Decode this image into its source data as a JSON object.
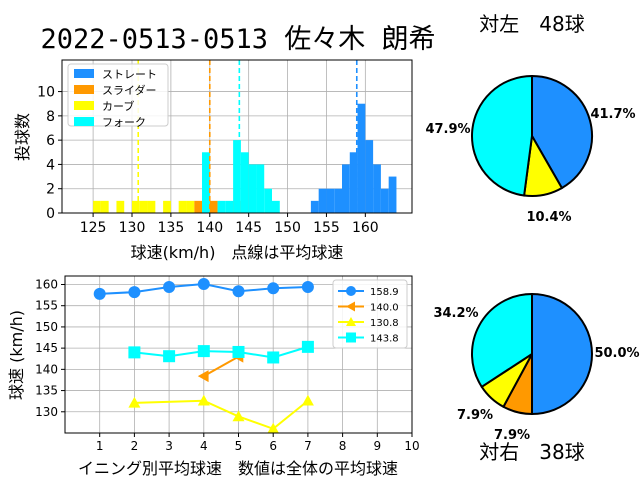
{
  "title": "2022-0513-0513 佐々木 朗希",
  "colors": {
    "straight": "#1e90ff",
    "slider": "#ff9900",
    "curve": "#ffff00",
    "fork": "#00ffff",
    "grid": "#b0b0b0"
  },
  "chart_data": [
    {
      "type": "bar",
      "subtype": "histogram",
      "xlabel": "球速(km/h)　点線は平均球速",
      "ylabel": "投球数",
      "xlim": [
        121,
        166
      ],
      "ylim": [
        0,
        12.6
      ],
      "xticks": [
        125,
        130,
        135,
        140,
        145,
        150,
        155,
        160
      ],
      "yticks": [
        0,
        2,
        4,
        6,
        8,
        10
      ],
      "grid": true,
      "legend": "top-left",
      "series": [
        {
          "name": "ストレート",
          "color_key": "straight",
          "mean": 158.9,
          "bins": [
            [
              153,
              1
            ],
            [
              154,
              2
            ],
            [
              155,
              2
            ],
            [
              156,
              2
            ],
            [
              157,
              4
            ],
            [
              158,
              5
            ],
            [
              159,
              9
            ],
            [
              160,
              6
            ],
            [
              161,
              4
            ],
            [
              162,
              2
            ],
            [
              163,
              3
            ]
          ]
        },
        {
          "name": "スライダー",
          "color_key": "slider",
          "mean": 140.0,
          "bins": [
            [
              138,
              1
            ],
            [
              139,
              1
            ],
            [
              140,
              1
            ],
            [
              143,
              1
            ]
          ]
        },
        {
          "name": "カーブ",
          "color_key": "curve",
          "mean": 130.8,
          "bins": [
            [
              125,
              1
            ],
            [
              126,
              1
            ],
            [
              128,
              1
            ],
            [
              130,
              1
            ],
            [
              131,
              1
            ],
            [
              132,
              1
            ],
            [
              134,
              1
            ],
            [
              136,
              1
            ],
            [
              137,
              1
            ]
          ]
        },
        {
          "name": "フォーク",
          "color_key": "fork",
          "mean": 143.8,
          "bins": [
            [
              139,
              5
            ],
            [
              141,
              1
            ],
            [
              142,
              1
            ],
            [
              143,
              6
            ],
            [
              144,
              5
            ],
            [
              145,
              4
            ],
            [
              146,
              4
            ],
            [
              147,
              2
            ],
            [
              148,
              1
            ]
          ]
        }
      ]
    },
    {
      "type": "line",
      "xlabel": "イニング別平均球速　数値は全体の平均球速",
      "ylabel": "球速 (km/h)",
      "xlim": [
        0,
        10
      ],
      "ylim": [
        125,
        162
      ],
      "xticks": [
        1,
        2,
        3,
        4,
        5,
        6,
        7,
        8,
        9,
        10
      ],
      "yticks": [
        130,
        135,
        140,
        145,
        150,
        155,
        160
      ],
      "grid": true,
      "legend": "top-right",
      "series": [
        {
          "name": "158.9",
          "color_key": "straight",
          "marker": "circle",
          "x": [
            1,
            2,
            3,
            4,
            5,
            6,
            7
          ],
          "y": [
            157.8,
            158.2,
            159.4,
            160.1,
            158.4,
            159.1,
            159.4
          ]
        },
        {
          "name": "140.0",
          "color_key": "slider",
          "marker": "triangle-left",
          "x": [
            4,
            5
          ],
          "y": [
            138.4,
            143.0
          ]
        },
        {
          "name": "130.8",
          "color_key": "curve",
          "marker": "triangle-up",
          "x": [
            2,
            4,
            5,
            6,
            7
          ],
          "y": [
            132.1,
            132.6,
            128.9,
            126.0,
            132.6
          ]
        },
        {
          "name": "143.8",
          "color_key": "fork",
          "marker": "square",
          "x": [
            2,
            3,
            4,
            5,
            6,
            7
          ],
          "y": [
            144.0,
            143.1,
            144.3,
            144.1,
            142.8,
            145.3
          ]
        }
      ]
    },
    {
      "type": "pie",
      "title": "対左　48球",
      "slices": [
        {
          "color_key": "straight",
          "value": 41.7,
          "label": "41.7%"
        },
        {
          "color_key": "curve",
          "value": 10.4,
          "label": "10.4%"
        },
        {
          "color_key": "fork",
          "value": 47.9,
          "label": "47.9%"
        }
      ]
    },
    {
      "type": "pie",
      "title": "対右　38球",
      "slices": [
        {
          "color_key": "straight",
          "value": 50.0,
          "label": "50.0%"
        },
        {
          "color_key": "slider",
          "value": 7.9,
          "label": "7.9%"
        },
        {
          "color_key": "curve",
          "value": 7.9,
          "label": "7.9%"
        },
        {
          "color_key": "fork",
          "value": 34.2,
          "label": "34.2%"
        }
      ]
    }
  ]
}
